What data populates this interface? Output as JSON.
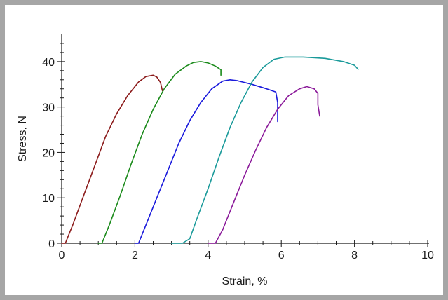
{
  "chart_data": {
    "type": "line",
    "title": "",
    "xlabel": "Strain, %",
    "ylabel": "Stress, N",
    "xlim": [
      0,
      10
    ],
    "ylim": [
      0,
      46
    ],
    "x_ticks": [
      0,
      2,
      4,
      6,
      8,
      10
    ],
    "x_tick_labels": [
      "0",
      "2",
      "4",
      "6",
      "8",
      "10"
    ],
    "y_ticks": [
      0,
      10,
      20,
      30,
      40
    ],
    "y_tick_labels": [
      "0",
      "10",
      "20",
      "30",
      "40"
    ],
    "grid": false,
    "legend": "none",
    "series": [
      {
        "color": "#8b1a1a",
        "points": [
          [
            0.0,
            0.0
          ],
          [
            0.1,
            0.0
          ],
          [
            0.3,
            4.0
          ],
          [
            0.6,
            10.5
          ],
          [
            0.9,
            17.0
          ],
          [
            1.2,
            23.5
          ],
          [
            1.5,
            28.5
          ],
          [
            1.8,
            32.5
          ],
          [
            2.1,
            35.5
          ],
          [
            2.3,
            36.7
          ],
          [
            2.5,
            37.0
          ],
          [
            2.6,
            36.6
          ],
          [
            2.7,
            35.4
          ],
          [
            2.75,
            33.6
          ]
        ]
      },
      {
        "color": "#1a8a1a",
        "points": [
          [
            1.0,
            0.0
          ],
          [
            1.1,
            0.0
          ],
          [
            1.3,
            4.0
          ],
          [
            1.6,
            10.5
          ],
          [
            1.9,
            17.5
          ],
          [
            2.2,
            24.0
          ],
          [
            2.5,
            29.5
          ],
          [
            2.8,
            34.0
          ],
          [
            3.1,
            37.2
          ],
          [
            3.4,
            39.0
          ],
          [
            3.6,
            39.8
          ],
          [
            3.8,
            40.0
          ],
          [
            4.0,
            39.7
          ],
          [
            4.2,
            39.0
          ],
          [
            4.35,
            38.2
          ],
          [
            4.35,
            37.0
          ]
        ]
      },
      {
        "color": "#1a1adc",
        "points": [
          [
            2.0,
            0.0
          ],
          [
            2.1,
            0.0
          ],
          [
            2.3,
            4.0
          ],
          [
            2.6,
            10.0
          ],
          [
            2.9,
            16.0
          ],
          [
            3.2,
            22.0
          ],
          [
            3.5,
            27.0
          ],
          [
            3.8,
            31.0
          ],
          [
            4.1,
            34.0
          ],
          [
            4.4,
            35.7
          ],
          [
            4.6,
            36.0
          ],
          [
            4.8,
            35.8
          ],
          [
            5.2,
            35.0
          ],
          [
            5.6,
            34.0
          ],
          [
            5.85,
            33.3
          ],
          [
            5.9,
            31.0
          ],
          [
            5.9,
            26.8
          ]
        ]
      },
      {
        "color": "#1a9a9a",
        "points": [
          [
            3.0,
            0.0
          ],
          [
            3.3,
            0.0
          ],
          [
            3.5,
            1.0
          ],
          [
            3.7,
            5.5
          ],
          [
            4.0,
            12.0
          ],
          [
            4.3,
            19.0
          ],
          [
            4.6,
            25.5
          ],
          [
            4.9,
            31.0
          ],
          [
            5.2,
            35.5
          ],
          [
            5.5,
            38.7
          ],
          [
            5.8,
            40.5
          ],
          [
            6.1,
            41.0
          ],
          [
            6.6,
            41.0
          ],
          [
            7.2,
            40.7
          ],
          [
            7.7,
            40.0
          ],
          [
            8.0,
            39.2
          ],
          [
            8.1,
            38.3
          ]
        ]
      },
      {
        "color": "#8b1a9a",
        "points": [
          [
            4.0,
            0.0
          ],
          [
            4.2,
            0.0
          ],
          [
            4.4,
            3.0
          ],
          [
            4.7,
            9.0
          ],
          [
            5.0,
            15.0
          ],
          [
            5.3,
            20.5
          ],
          [
            5.6,
            25.5
          ],
          [
            5.9,
            29.5
          ],
          [
            6.2,
            32.5
          ],
          [
            6.5,
            34.0
          ],
          [
            6.7,
            34.5
          ],
          [
            6.9,
            34.0
          ],
          [
            7.0,
            33.0
          ],
          [
            7.0,
            30.5
          ],
          [
            7.05,
            28.0
          ]
        ]
      }
    ]
  }
}
